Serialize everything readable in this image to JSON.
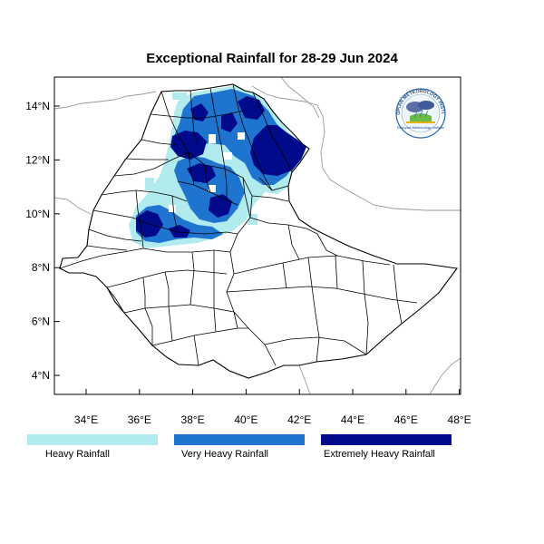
{
  "title": "Exceptional Rainfall for 28-29 Jun 2024",
  "axes": {
    "lat_ticks": [
      "14°N",
      "12°N",
      "10°N",
      "8°N",
      "6°N",
      "4°N"
    ],
    "lon_ticks": [
      "34°E",
      "36°E",
      "38°E",
      "40°E",
      "42°E",
      "44°E",
      "46°E",
      "48°E"
    ]
  },
  "legend": [
    {
      "label": "Heavy Rainfall",
      "color": "#b2ebee"
    },
    {
      "label": "Very Heavy Rainfall",
      "color": "#1f74cf"
    },
    {
      "label": "Extremely Heavy Rainfall",
      "color": "#000a8b"
    }
  ],
  "logo": {
    "arc_text": "ETHIOPIAN METEOROLOGY INSTITUTE",
    "caption": "Ethiopian Meteorology Institute"
  },
  "colors": {
    "heavy": "#b2ebee",
    "very_heavy": "#1f74cf",
    "extreme": "#000a8b",
    "boundary": "#000000",
    "neighbor_border": "#9a9a9a"
  }
}
